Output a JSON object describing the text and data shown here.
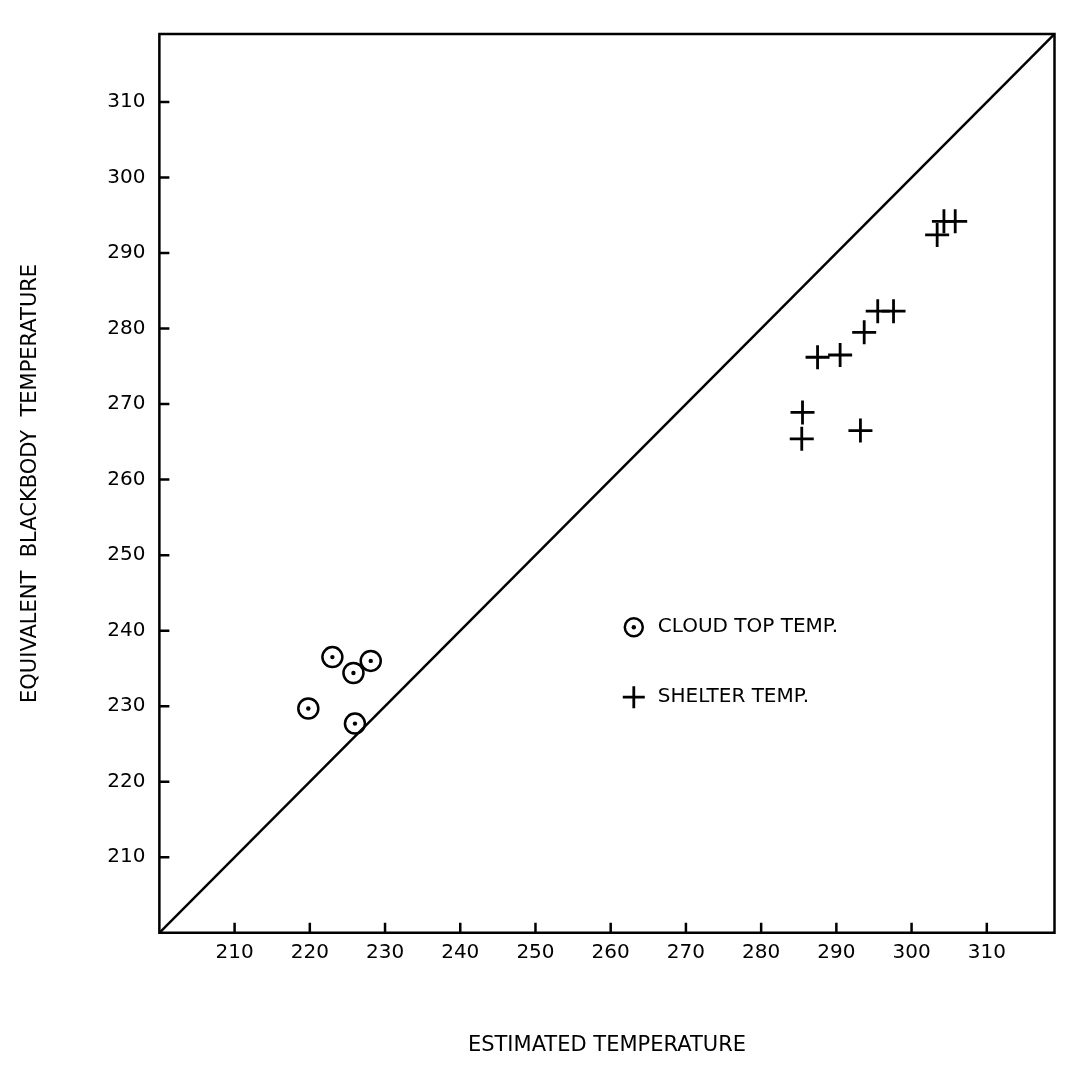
{
  "chart_data": {
    "type": "scatter",
    "xlabel": "ESTIMATED TEMPERATURE",
    "ylabel": "EQUIVALENT  BLACKBODY  TEMPERATURE",
    "xlim": [
      200,
      319
    ],
    "ylim": [
      200,
      319
    ],
    "xticks": [
      210,
      220,
      230,
      240,
      250,
      260,
      270,
      280,
      290,
      300,
      310
    ],
    "yticks": [
      210,
      220,
      230,
      240,
      250,
      260,
      270,
      280,
      290,
      300,
      310
    ],
    "grid": false,
    "legend": "bottom right",
    "series": [
      {
        "name": "CLOUD TOP TEMP.",
        "color": "#000000",
        "marker": "circle",
        "x": [
          223.0,
          225.8,
          228.1,
          219.8,
          226.0
        ],
        "values": [
          236.5,
          234.4,
          236.0,
          229.7,
          227.7
        ]
      },
      {
        "name": "SHELTER TEMP.",
        "color": "#000000",
        "marker": "cross",
        "x": [
          303.4,
          304.3,
          305.8,
          295.5,
          297.6,
          293.7,
          287.5,
          290.5,
          285.5,
          285.4,
          293.2
        ],
        "values": [
          292.4,
          294.2,
          294.2,
          282.3,
          282.3,
          279.5,
          276.2,
          276.5,
          268.9,
          265.4,
          266.5
        ]
      },
      {
        "type": "line",
        "color": "#000000",
        "marker": "none",
        "x": [
          200,
          319
        ],
        "values": [
          200,
          319
        ]
      }
    ]
  }
}
